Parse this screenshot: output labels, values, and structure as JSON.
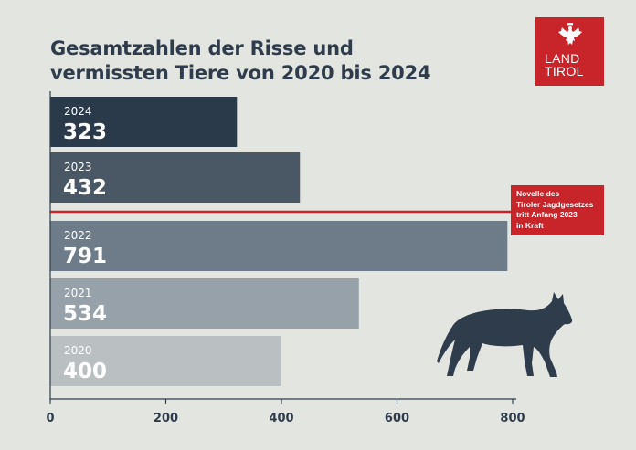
{
  "title": {
    "line1": "Gesamtzahlen der Risse und",
    "line2": "vermissten Tiere von 2020 bis 2024"
  },
  "logo": {
    "line1": "LAND",
    "line2": "TIROL",
    "color": "#c8252b",
    "icon": "tyrolean-eagle-icon"
  },
  "annotation": {
    "lines": [
      "Novelle des",
      "Tiroler Jagdgesetzes",
      "tritt Anfang 2023",
      "in Kraft"
    ],
    "color": "#c8252b"
  },
  "illustration": {
    "icon": "wolf-icon",
    "color": "#2e3c4c"
  },
  "chart_data": {
    "type": "bar",
    "orientation": "horizontal",
    "categories": [
      "2024",
      "2023",
      "2022",
      "2021",
      "2020"
    ],
    "values": [
      323,
      432,
      791,
      534,
      400
    ],
    "value_labels": [
      "323",
      "432",
      "791",
      "534",
      "400"
    ],
    "colors": [
      "#2b3a4a",
      "#4a5866",
      "#6e7b88",
      "#97a1aa",
      "#babfc2"
    ],
    "xlim": [
      0,
      800
    ],
    "xticks": [
      0,
      200,
      400,
      600,
      800
    ],
    "xtick_labels": [
      "0",
      "200",
      "400",
      "600",
      "800"
    ],
    "grid": false,
    "reference_line": {
      "between": [
        "2023",
        "2022"
      ],
      "color": "#c8252b"
    },
    "title": "Gesamtzahlen der Risse und vermissten Tiere von 2020 bis 2024",
    "xlabel": "",
    "ylabel": ""
  }
}
